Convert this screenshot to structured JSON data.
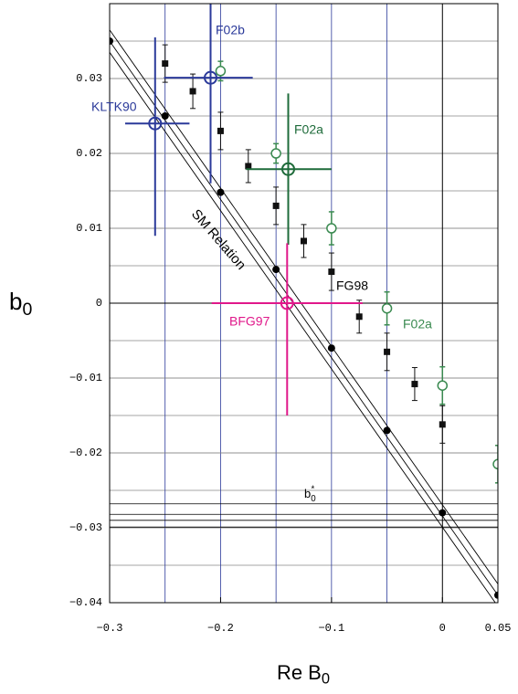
{
  "chart_data": {
    "type": "scatter",
    "xlabel": {
      "text": "Re B",
      "sub": "0"
    },
    "ylabel": {
      "text": "b",
      "sub": "0"
    },
    "xlim": [
      -0.3,
      0.05
    ],
    "ylim": [
      -0.04,
      0.04
    ],
    "xticks": [
      {
        "value": -0.3,
        "label": "−0.3"
      },
      {
        "value": -0.2,
        "label": "−0.2"
      },
      {
        "value": -0.1,
        "label": "−0.1"
      },
      0,
      0.05
    ],
    "yticks": [
      0.03,
      0.02,
      0.01,
      0,
      {
        "value": -0.01,
        "label": "−0.01"
      },
      {
        "value": -0.02,
        "label": "−0.02"
      },
      {
        "value": -0.03,
        "label": "−0.03"
      },
      {
        "value": -0.04,
        "label": "−0.04"
      }
    ],
    "xgrid": [
      -0.25,
      -0.2,
      -0.15,
      -0.1,
      -0.05
    ],
    "ygrid": [
      0.035,
      0.03,
      0.025,
      0.02,
      0.015,
      0.01,
      0.005,
      -0.005,
      -0.01,
      -0.015,
      -0.02,
      -0.025,
      -0.03,
      -0.035
    ],
    "xgrid_color": "#2b3a9a",
    "ygrid_color": "#888888",
    "sm": {
      "name": "SM Relation",
      "color": "#000000",
      "x": [
        -0.3,
        -0.25,
        -0.2,
        -0.15,
        -0.1,
        -0.05,
        0,
        0.05
      ],
      "y": [
        0.035,
        0.025,
        0.0148,
        0.0045,
        -0.006,
        -0.017,
        -0.028,
        -0.039
      ],
      "band": [
        {
          "x": [
            -0.3,
            0.05
          ],
          "y": [
            0.0365,
            -0.0375
          ]
        },
        {
          "x": [
            -0.3,
            0.05
          ],
          "y": [
            0.035,
            -0.039
          ]
        },
        {
          "x": [
            -0.3,
            0.05
          ],
          "y": [
            0.0335,
            -0.0405
          ]
        }
      ]
    },
    "bstar": {
      "text": "b",
      "sub": "0",
      "sup": "*",
      "color": "#000000",
      "values": [
        -0.0268,
        -0.0282,
        -0.029,
        -0.0299
      ]
    },
    "fg98": {
      "name": "FG98",
      "color": "#111111",
      "x": [
        -0.25,
        -0.225,
        -0.2,
        -0.175,
        -0.15,
        -0.125,
        -0.1,
        -0.075,
        -0.05,
        -0.025,
        0
      ],
      "y": [
        0.032,
        0.0283,
        0.023,
        0.0183,
        0.013,
        0.0083,
        0.0042,
        -0.0018,
        -0.0065,
        -0.0108,
        -0.0162
      ],
      "err": [
        0.0025,
        0.0023,
        0.0025,
        0.0022,
        0.0025,
        0.0022,
        0.0025,
        0.0022,
        0.0025,
        0.0022,
        0.0025
      ]
    },
    "f02a": {
      "name": "F02a",
      "color": "#3a8a50",
      "x": [
        -0.2,
        -0.15,
        -0.1,
        -0.05,
        0,
        0.05
      ],
      "y": [
        0.031,
        0.02,
        0.01,
        -0.0007,
        -0.011,
        -0.0215
      ],
      "err": [
        0.0013,
        0.0013,
        0.0022,
        0.0022,
        0.0025,
        0.0025
      ]
    },
    "crosses": [
      {
        "name": "KLTK90",
        "color": "#2b3a9a",
        "x": -0.259,
        "y": 0.024,
        "xmin": -0.286,
        "xmax": -0.228,
        "ymin": 0.009,
        "ymax": 0.0355
      },
      {
        "name": "F02b",
        "color": "#2b3a9a",
        "x": -0.209,
        "y": 0.0301,
        "xmin": -0.251,
        "xmax": -0.171,
        "ymin": 0.016,
        "ymax": 0.04
      },
      {
        "name": "F02a",
        "color": "#1e6b3a",
        "x": -0.139,
        "y": 0.0179,
        "xmin": -0.177,
        "xmax": -0.1,
        "ymin": 0.0078,
        "ymax": 0.028
      },
      {
        "name": "BFG97",
        "color": "#e0188a",
        "x": -0.14,
        "y": 0,
        "xmin": -0.208,
        "xmax": -0.072,
        "ymin": -0.015,
        "ymax": 0.008
      }
    ]
  }
}
